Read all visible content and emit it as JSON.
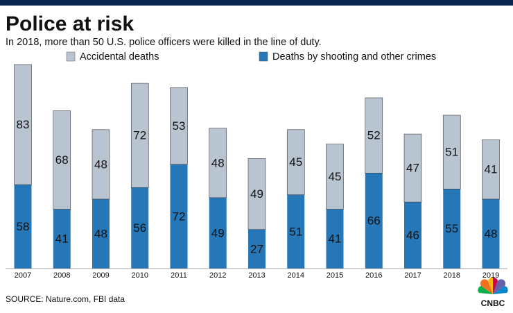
{
  "chart_data": {
    "type": "stacked_bar",
    "title": "Police at risk",
    "subtitle": "In 2018, more than 50 U.S. police officers were killed in the line of duty.",
    "categories": [
      "2007",
      "2008",
      "2009",
      "2010",
      "2011",
      "2012",
      "2013",
      "2014",
      "2015",
      "2016",
      "2017",
      "2018",
      "2019"
    ],
    "series": [
      {
        "name": "Accidental deaths",
        "color": "#b9c4d1",
        "values": [
          83,
          68,
          48,
          72,
          53,
          48,
          49,
          45,
          45,
          52,
          47,
          51,
          41
        ]
      },
      {
        "name": "Deaths by shooting and other crimes",
        "color": "#2577b8",
        "values": [
          58,
          41,
          48,
          56,
          72,
          49,
          27,
          51,
          41,
          66,
          46,
          55,
          48
        ]
      }
    ],
    "source": "SOURCE: Nature.com, FBI data",
    "logo": "CNBC"
  }
}
